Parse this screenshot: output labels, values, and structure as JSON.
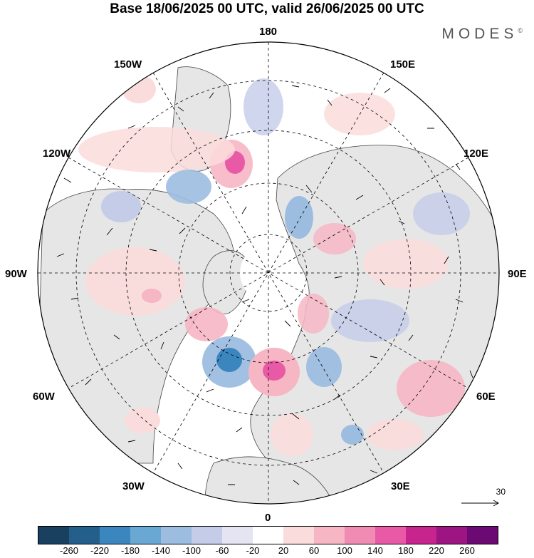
{
  "title": "Base 18/06/2025 00 UTC, valid 26/06/2025 00 UTC",
  "brand": "MODES",
  "brand_mark": "©",
  "longitude_labels": {
    "l180": "180",
    "l150w": "150W",
    "l150e": "150E",
    "l120w": "120W",
    "l120e": "120E",
    "l90w": "90W",
    "l90e": "90E",
    "l60w": "60W",
    "l60e": "60E",
    "l30w": "30W",
    "l30e": "30E",
    "l0": "0"
  },
  "reference_vector": {
    "label": "30"
  },
  "colorbar": {
    "colors": [
      "#1a4060",
      "#245f8c",
      "#3b86be",
      "#6aa8d4",
      "#9dbde0",
      "#c4cce8",
      "#e4e4f2",
      "#ffffff",
      "#fbdcdc",
      "#f6b6c4",
      "#f08cb4",
      "#e85aa6",
      "#c8248e",
      "#9c1582",
      "#6a0a72"
    ],
    "ticks": [
      "-260",
      "-220",
      "-180",
      "-140",
      "-100",
      "-60",
      "-20",
      "20",
      "60",
      "100",
      "140",
      "180",
      "220",
      "260"
    ]
  }
}
